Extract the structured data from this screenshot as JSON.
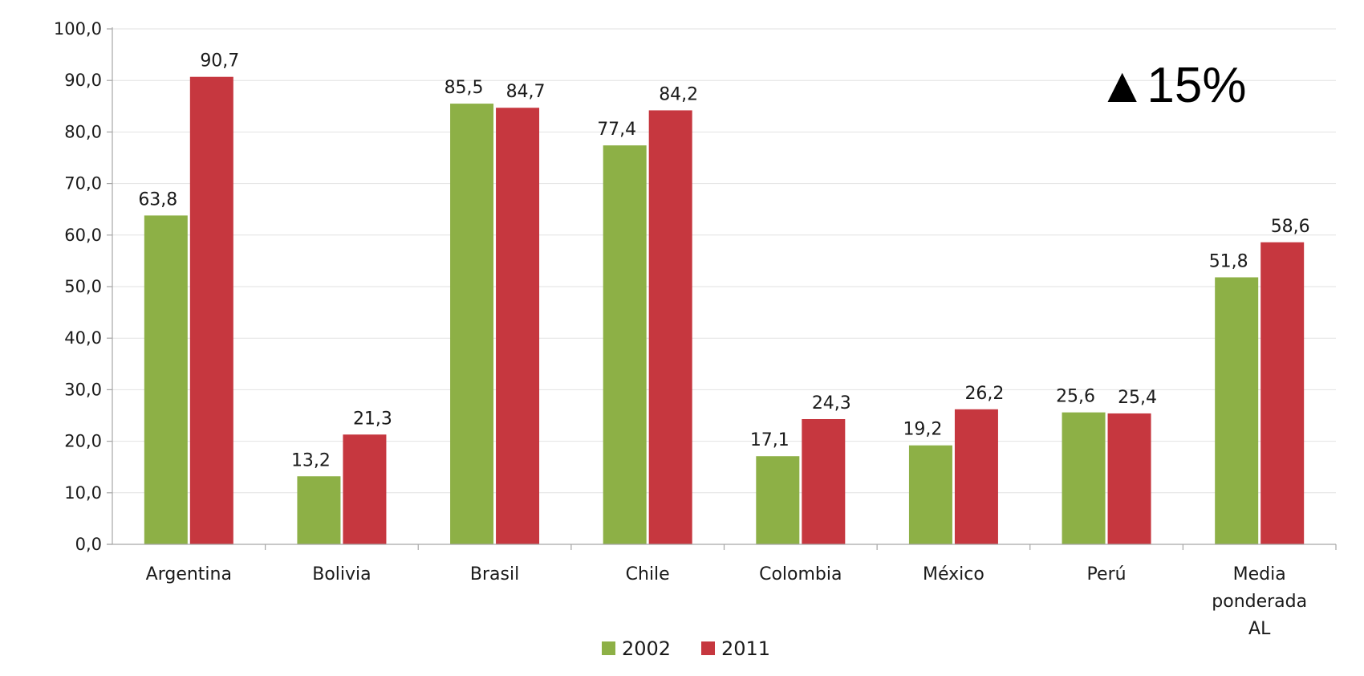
{
  "chart_data": {
    "type": "bar",
    "categories": [
      "Argentina",
      "Bolivia",
      "Brasil",
      "Chile",
      "Colombia",
      "México",
      "Perú",
      "Media ponderada AL"
    ],
    "category_lines": [
      [
        "Argentina"
      ],
      [
        "Bolivia"
      ],
      [
        "Brasil"
      ],
      [
        "Chile"
      ],
      [
        "Colombia"
      ],
      [
        "México"
      ],
      [
        "Perú"
      ],
      [
        "Media",
        "ponderada",
        "AL"
      ]
    ],
    "series": [
      {
        "name": "2002",
        "color": "#8db046",
        "values": [
          63.8,
          13.2,
          85.5,
          77.4,
          17.1,
          19.2,
          25.6,
          51.8
        ],
        "labels": [
          "63,8",
          "13,2",
          "85,5",
          "77,4",
          "17,1",
          "19,2",
          "25,6",
          "51,8"
        ]
      },
      {
        "name": "2011",
        "color": "#c6373f",
        "values": [
          90.7,
          21.3,
          84.7,
          84.2,
          24.3,
          26.2,
          25.4,
          58.6
        ],
        "labels": [
          "90,7",
          "21,3",
          "84,7",
          "84,2",
          "24,3",
          "26,2",
          "25,4",
          "58,6"
        ]
      }
    ],
    "ylim": [
      0,
      100
    ],
    "yticks": [
      "0,0",
      "10,0",
      "20,0",
      "30,0",
      "40,0",
      "50,0",
      "60,0",
      "70,0",
      "80,0",
      "90,0",
      "100,0"
    ],
    "grid": true,
    "legend": "bottom",
    "annotation": "▲15%",
    "xlabel": "",
    "ylabel": ""
  }
}
